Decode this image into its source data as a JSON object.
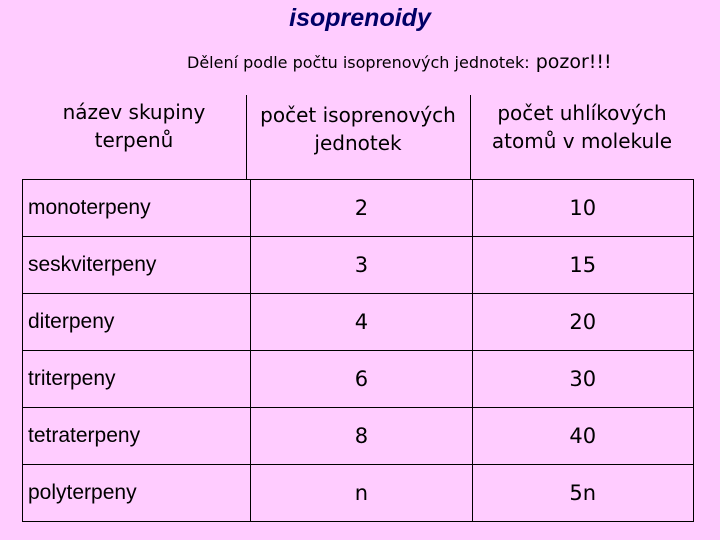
{
  "title": "isoprenoidy",
  "subtitle": {
    "text": "Dělení podle počtu isoprenových jednotek:",
    "warning": "pozor!!!"
  },
  "table": {
    "headers": {
      "group": [
        "název skupiny",
        "terpenů"
      ],
      "units": [
        "počet isoprenových",
        "jednotek"
      ],
      "carbons": [
        "počet uhlíkových",
        "atomů v molekule"
      ]
    },
    "rows": [
      {
        "name": "monoterpeny",
        "units": "2",
        "carbons": "10"
      },
      {
        "name": "seskviterpeny",
        "units": "3",
        "carbons": "15"
      },
      {
        "name": "diterpeny",
        "units": "4",
        "carbons": "20"
      },
      {
        "name": "triterpeny",
        "units": "6",
        "carbons": "30"
      },
      {
        "name": "tetraterpeny",
        "units": "8",
        "carbons": "40"
      },
      {
        "name": "polyterpeny",
        "units": "n",
        "carbons": "5n"
      }
    ]
  },
  "colors": {
    "background": "#ffccff",
    "title": "#000066",
    "text": "#000000"
  }
}
